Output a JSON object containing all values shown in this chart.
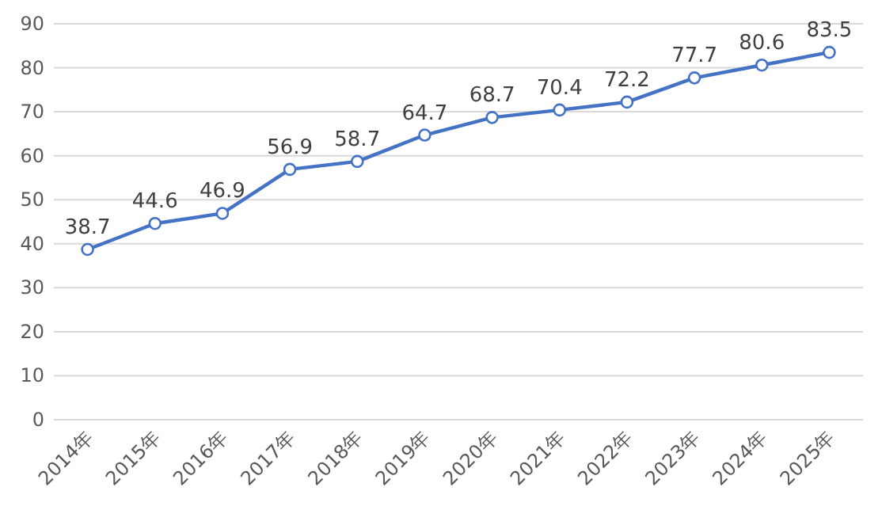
{
  "chart_data": {
    "type": "line",
    "categories": [
      "2014年",
      "2015年",
      "2016年",
      "2017年",
      "2018年",
      "2019年",
      "2020年",
      "2021年",
      "2022年",
      "2023年",
      "2024年",
      "2025年"
    ],
    "series": [
      {
        "color": "#4472c4",
        "values": [
          38.7,
          44.6,
          46.9,
          56.9,
          58.7,
          64.7,
          68.7,
          70.4,
          72.2,
          77.7,
          80.6,
          83.5
        ]
      }
    ],
    "ylim": [
      0,
      90
    ],
    "yticks": [
      0,
      10,
      20,
      30,
      40,
      50,
      60,
      70,
      80,
      90
    ],
    "grid": "y",
    "marker": "circle",
    "data_labels": true
  }
}
